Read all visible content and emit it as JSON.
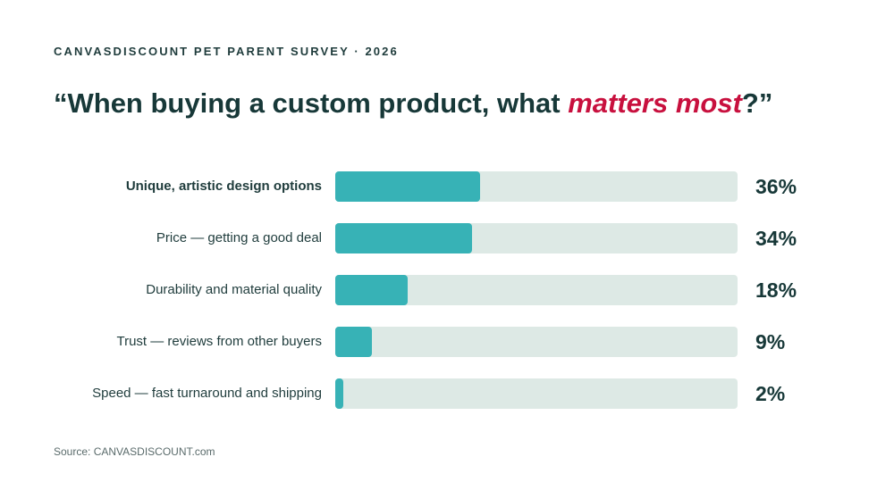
{
  "kicker": "CANVASDISCOUNT PET PARENT SURVEY · 2026",
  "title": {
    "before": "“When buying a custom product, what ",
    "accent": "matters most",
    "after": "?”"
  },
  "colors": {
    "bar_fill": "#37b2b6",
    "bar_track": "#dde9e5",
    "accent": "#c8103e",
    "text": "#173838"
  },
  "chart_data": {
    "type": "bar",
    "orientation": "horizontal",
    "categories": [
      "Unique, artistic design options",
      "Price — getting a good deal",
      "Durability and material quality",
      "Trust — reviews from other buyers",
      "Speed — fast turnaround and shipping"
    ],
    "values": [
      36,
      34,
      18,
      9,
      2
    ],
    "value_labels": [
      "36%",
      "34%",
      "18%",
      "9%",
      "2%"
    ],
    "xlim": [
      0,
      100
    ],
    "highlighted_category": 0,
    "grid": false,
    "legend": "none"
  },
  "source": "Source: CANVASDISCOUNT.com"
}
